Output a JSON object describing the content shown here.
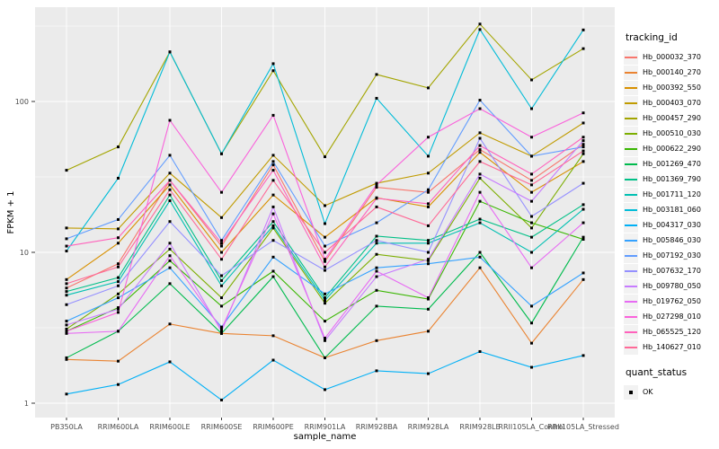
{
  "chart_data": {
    "type": "line",
    "xlabel": "sample_name",
    "ylabel": "FPKM + 1",
    "y_scale": "log10",
    "y_major_ticks": [
      1,
      10,
      100
    ],
    "y_minor_gridlines": [
      3.162,
      31.62,
      316.2
    ],
    "grid": "on",
    "panel_background": "#EBEBEB",
    "gridline_color": "#FFFFFF",
    "tick_label_color": "#4D4D4D",
    "marker": "black-square",
    "legend_position": "right",
    "legend_title": "tracking_id",
    "quant_legend": {
      "title": "quant_status",
      "items": [
        {
          "label": "OK",
          "marker": "black-square"
        }
      ]
    },
    "categories": [
      "PB350LA",
      "RRIM600LA",
      "RRIM600LE",
      "RRIM600SE",
      "RRIM600PE",
      "RRIM901LA",
      "RRIM928BA",
      "RRIM928LA",
      "RRIM928LE",
      "RRII105LA_Control",
      "RRII105LA_Stressed"
    ],
    "series": [
      {
        "name": "Hb_000032_370",
        "color": "#F8766D",
        "values": [
          5.8,
          8.4,
          30,
          11,
          38,
          8.7,
          27,
          25,
          48,
          30,
          52
        ]
      },
      {
        "name": "Hb_000140_270",
        "color": "#EA8331",
        "values": [
          1.95,
          1.9,
          3.35,
          2.9,
          2.8,
          2.0,
          2.6,
          3.0,
          7.9,
          2.5,
          6.6
        ]
      },
      {
        "name": "Hb_000392_550",
        "color": "#D89000",
        "values": [
          6.6,
          11.5,
          28,
          10,
          24,
          12.6,
          23,
          20,
          46,
          25,
          40
        ]
      },
      {
        "name": "Hb_000403_070",
        "color": "#C09B00",
        "values": [
          14.5,
          14.3,
          33.5,
          17,
          44,
          20.4,
          28.7,
          33.5,
          62,
          43.4,
          72
        ]
      },
      {
        "name": "Hb_000457_290",
        "color": "#A3A500",
        "values": [
          35,
          50,
          213,
          45,
          160,
          43,
          151,
          123,
          326,
          139,
          224
        ]
      },
      {
        "name": "Hb_000510_030",
        "color": "#7CAE00",
        "values": [
          3.1,
          5.3,
          10.5,
          5.0,
          14.5,
          4.6,
          9.7,
          8.8,
          31,
          14.5,
          45
        ]
      },
      {
        "name": "Hb_000622_290",
        "color": "#39B600",
        "values": [
          3.0,
          4.3,
          8.8,
          4.4,
          7.5,
          3.5,
          5.6,
          4.9,
          21.8,
          15.7,
          12.2
        ]
      },
      {
        "name": "Hb_001269_470",
        "color": "#00BB4E",
        "values": [
          2.0,
          3.0,
          6.2,
          2.9,
          6.9,
          2.0,
          4.4,
          4.2,
          10,
          3.4,
          12.6
        ]
      },
      {
        "name": "Hb_001369_790",
        "color": "#00C087",
        "values": [
          5.5,
          6.8,
          24,
          6.5,
          16,
          5.0,
          12.8,
          12.0,
          16.6,
          12.6,
          20.7
        ]
      },
      {
        "name": "Hb_001711_120",
        "color": "#00C0B2",
        "values": [
          5.2,
          6.4,
          22,
          6.0,
          15,
          4.8,
          11.5,
          11.5,
          15.7,
          10,
          19.3
        ]
      },
      {
        "name": "Hb_003181_060",
        "color": "#00BCD8",
        "values": [
          10.2,
          31,
          213,
          45,
          178,
          15.5,
          105,
          43.4,
          300,
          89.6,
          298
        ]
      },
      {
        "name": "Hb_004317_030",
        "color": "#00B0F6",
        "values": [
          1.15,
          1.33,
          1.88,
          1.05,
          1.93,
          1.23,
          1.64,
          1.57,
          2.2,
          1.73,
          2.07
        ]
      },
      {
        "name": "Hb_005846_030",
        "color": "#35A2FF",
        "values": [
          3.5,
          5.0,
          7.9,
          3.2,
          9.3,
          5.3,
          7.9,
          8.4,
          9.3,
          4.4,
          7.3
        ]
      },
      {
        "name": "Hb_007192_030",
        "color": "#619CFF",
        "values": [
          12.3,
          16.5,
          44,
          12,
          40,
          11,
          15.7,
          26,
          102,
          43.4,
          50
        ]
      },
      {
        "name": "Hb_007632_170",
        "color": "#9590FF",
        "values": [
          4.5,
          6.0,
          16,
          7.0,
          12,
          7.6,
          12,
          10,
          57,
          17.3,
          28.7
        ]
      },
      {
        "name": "Hb_009780_050",
        "color": "#C77CFF",
        "values": [
          3.3,
          4.2,
          11.5,
          3.0,
          20,
          2.6,
          6.9,
          9.0,
          33,
          21.8,
          55
        ]
      },
      {
        "name": "Hb_019762_050",
        "color": "#E76BF3",
        "values": [
          2.9,
          3.0,
          9.5,
          3.1,
          18,
          2.7,
          7.5,
          5.0,
          25,
          7.9,
          15.7
        ]
      },
      {
        "name": "Hb_027298_010",
        "color": "#FA62DB",
        "values": [
          3.0,
          4.0,
          75,
          25,
          81,
          9.0,
          28,
          58,
          89.6,
          58,
          84
        ]
      },
      {
        "name": "Hb_065525_120",
        "color": "#FF62BC",
        "values": [
          11,
          12.5,
          30,
          11.5,
          35,
          8.0,
          22.8,
          21,
          51,
          33,
          58
        ]
      },
      {
        "name": "Hb_140627_010",
        "color": "#FF6A98",
        "values": [
          6.2,
          8.0,
          26,
          9.0,
          30,
          10,
          20,
          15,
          40,
          28,
          47
        ]
      }
    ]
  }
}
